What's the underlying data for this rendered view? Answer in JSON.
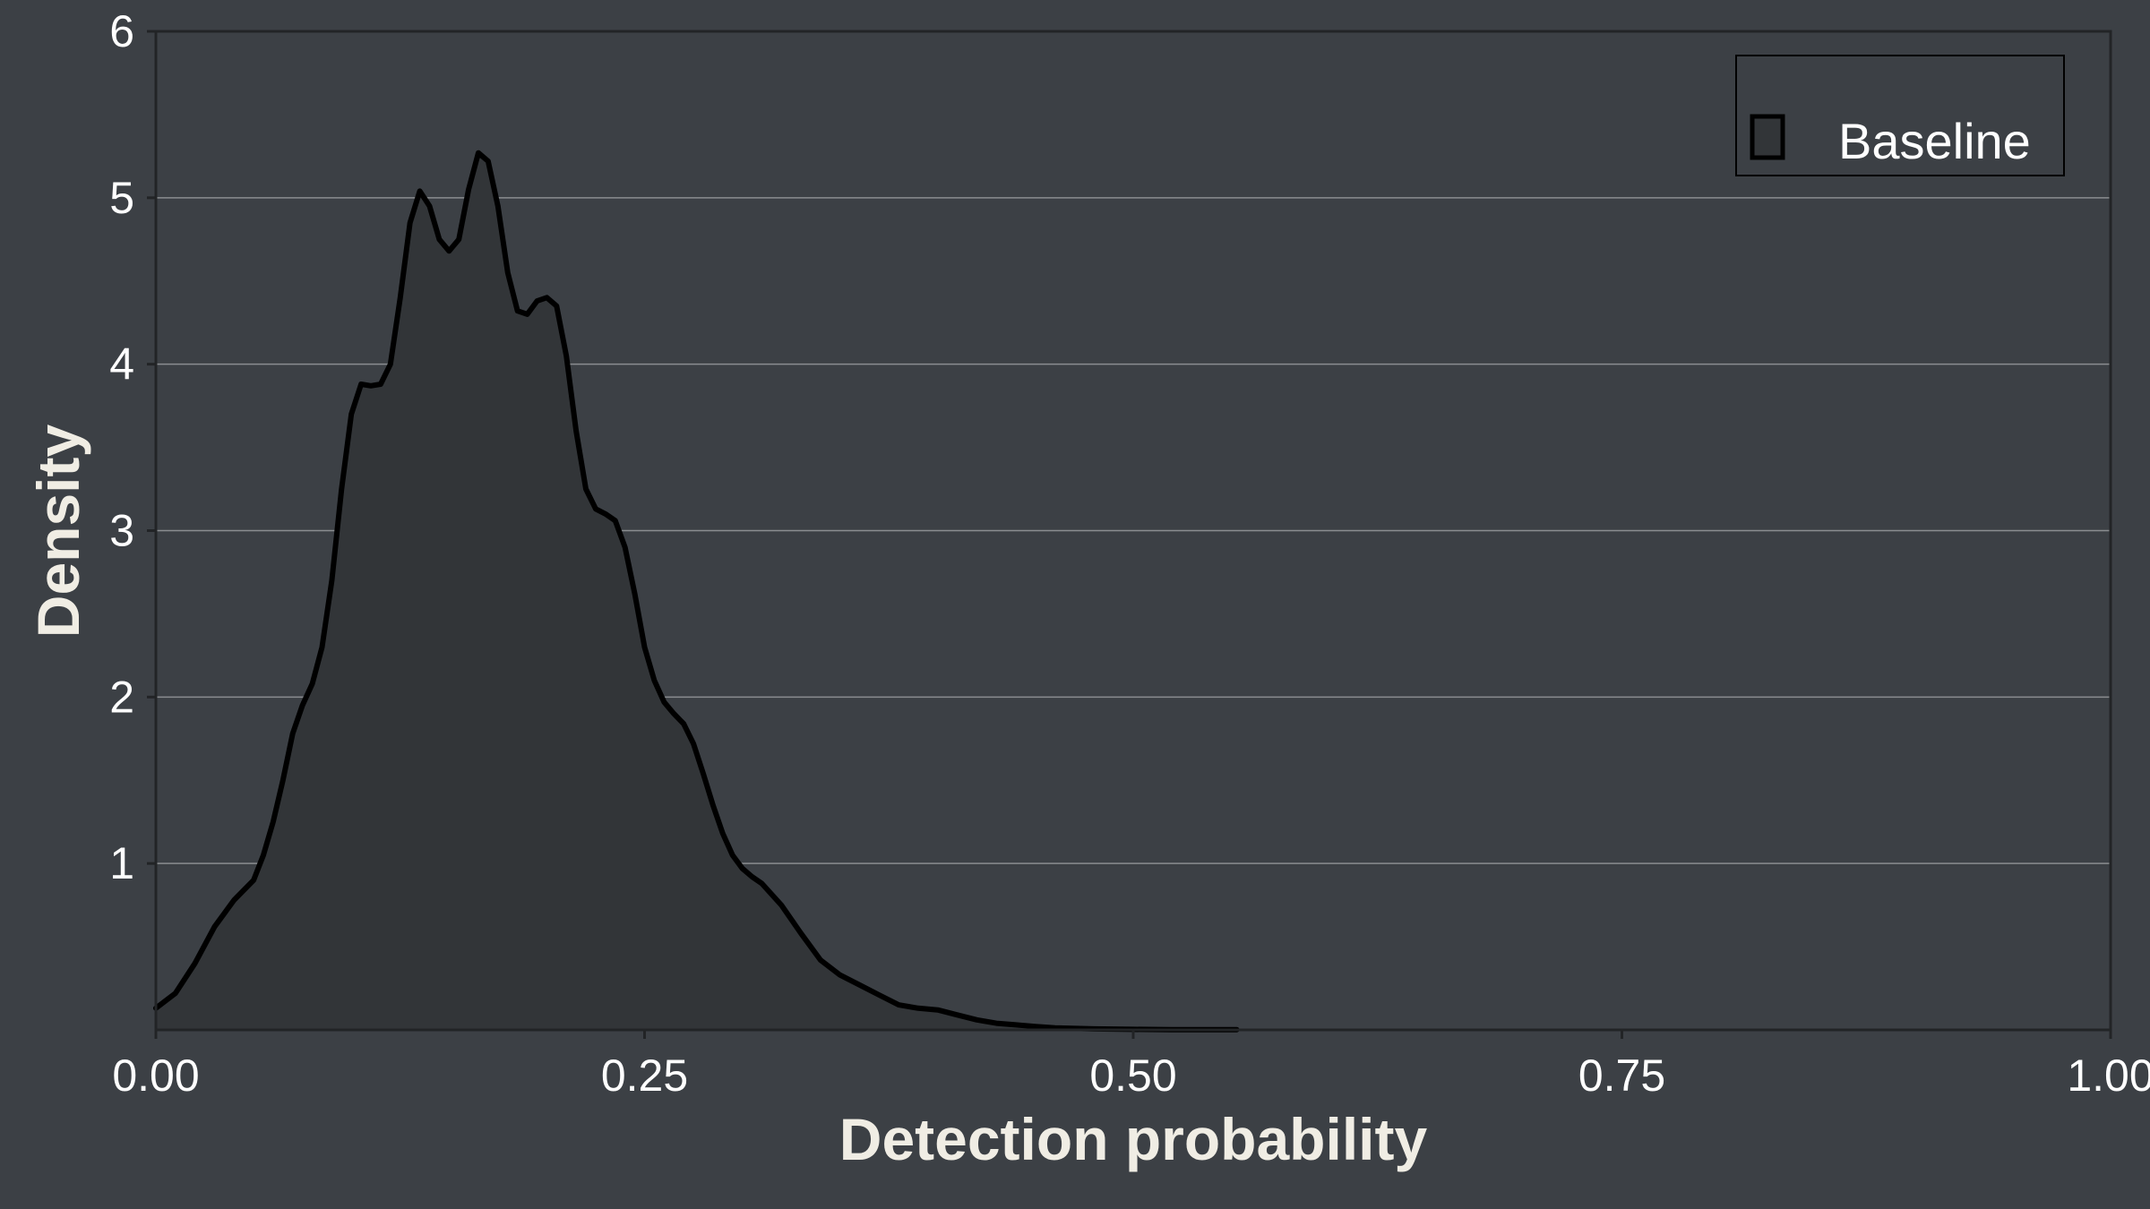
{
  "chart_data": {
    "type": "area",
    "title": "",
    "xlabel": "Detection probability",
    "ylabel": "Density",
    "xlim": [
      0,
      1
    ],
    "ylim": [
      0,
      6
    ],
    "x_ticks": [
      "0.00",
      "0.25",
      "0.50",
      "0.75",
      "1.00"
    ],
    "x_tick_values": [
      0,
      0.25,
      0.5,
      0.75,
      1.0
    ],
    "y_ticks": [
      "1",
      "2",
      "3",
      "4",
      "5",
      "6"
    ],
    "y_tick_values": [
      1,
      2,
      3,
      4,
      5,
      6
    ],
    "grid": "horizontal",
    "legend": {
      "position": "top-right",
      "entries": [
        "Baseline"
      ]
    },
    "colors": {
      "background": "#3c4045",
      "line": "#000000",
      "fill": "#323538",
      "grid": "#8a8d90"
    },
    "series": [
      {
        "name": "Baseline",
        "x": [
          0.0,
          0.01,
          0.02,
          0.03,
          0.04,
          0.05,
          0.055,
          0.06,
          0.065,
          0.07,
          0.075,
          0.08,
          0.085,
          0.09,
          0.095,
          0.1,
          0.105,
          0.11,
          0.115,
          0.12,
          0.125,
          0.13,
          0.135,
          0.14,
          0.145,
          0.15,
          0.155,
          0.16,
          0.165,
          0.17,
          0.175,
          0.18,
          0.185,
          0.19,
          0.195,
          0.2,
          0.205,
          0.21,
          0.215,
          0.22,
          0.225,
          0.23,
          0.235,
          0.24,
          0.245,
          0.25,
          0.255,
          0.26,
          0.265,
          0.27,
          0.275,
          0.28,
          0.285,
          0.29,
          0.295,
          0.3,
          0.305,
          0.31,
          0.32,
          0.33,
          0.34,
          0.35,
          0.36,
          0.37,
          0.38,
          0.39,
          0.4,
          0.41,
          0.42,
          0.43,
          0.44,
          0.45,
          0.46,
          0.48,
          0.5,
          0.52,
          0.553
        ],
        "y": [
          0.13,
          0.22,
          0.4,
          0.62,
          0.78,
          0.9,
          1.05,
          1.25,
          1.5,
          1.78,
          1.95,
          2.08,
          2.3,
          2.7,
          3.25,
          3.7,
          3.88,
          3.87,
          3.88,
          4.0,
          4.4,
          4.85,
          5.04,
          4.95,
          4.75,
          4.68,
          4.75,
          5.05,
          5.27,
          5.22,
          4.95,
          4.55,
          4.32,
          4.3,
          4.38,
          4.4,
          4.35,
          4.05,
          3.6,
          3.25,
          3.13,
          3.1,
          3.06,
          2.9,
          2.62,
          2.3,
          2.1,
          1.97,
          1.9,
          1.84,
          1.72,
          1.54,
          1.35,
          1.18,
          1.05,
          0.97,
          0.92,
          0.88,
          0.75,
          0.58,
          0.42,
          0.33,
          0.27,
          0.21,
          0.15,
          0.13,
          0.12,
          0.09,
          0.06,
          0.04,
          0.03,
          0.02,
          0.012,
          0.006,
          0.003,
          0.0015,
          0.001
        ]
      }
    ]
  }
}
